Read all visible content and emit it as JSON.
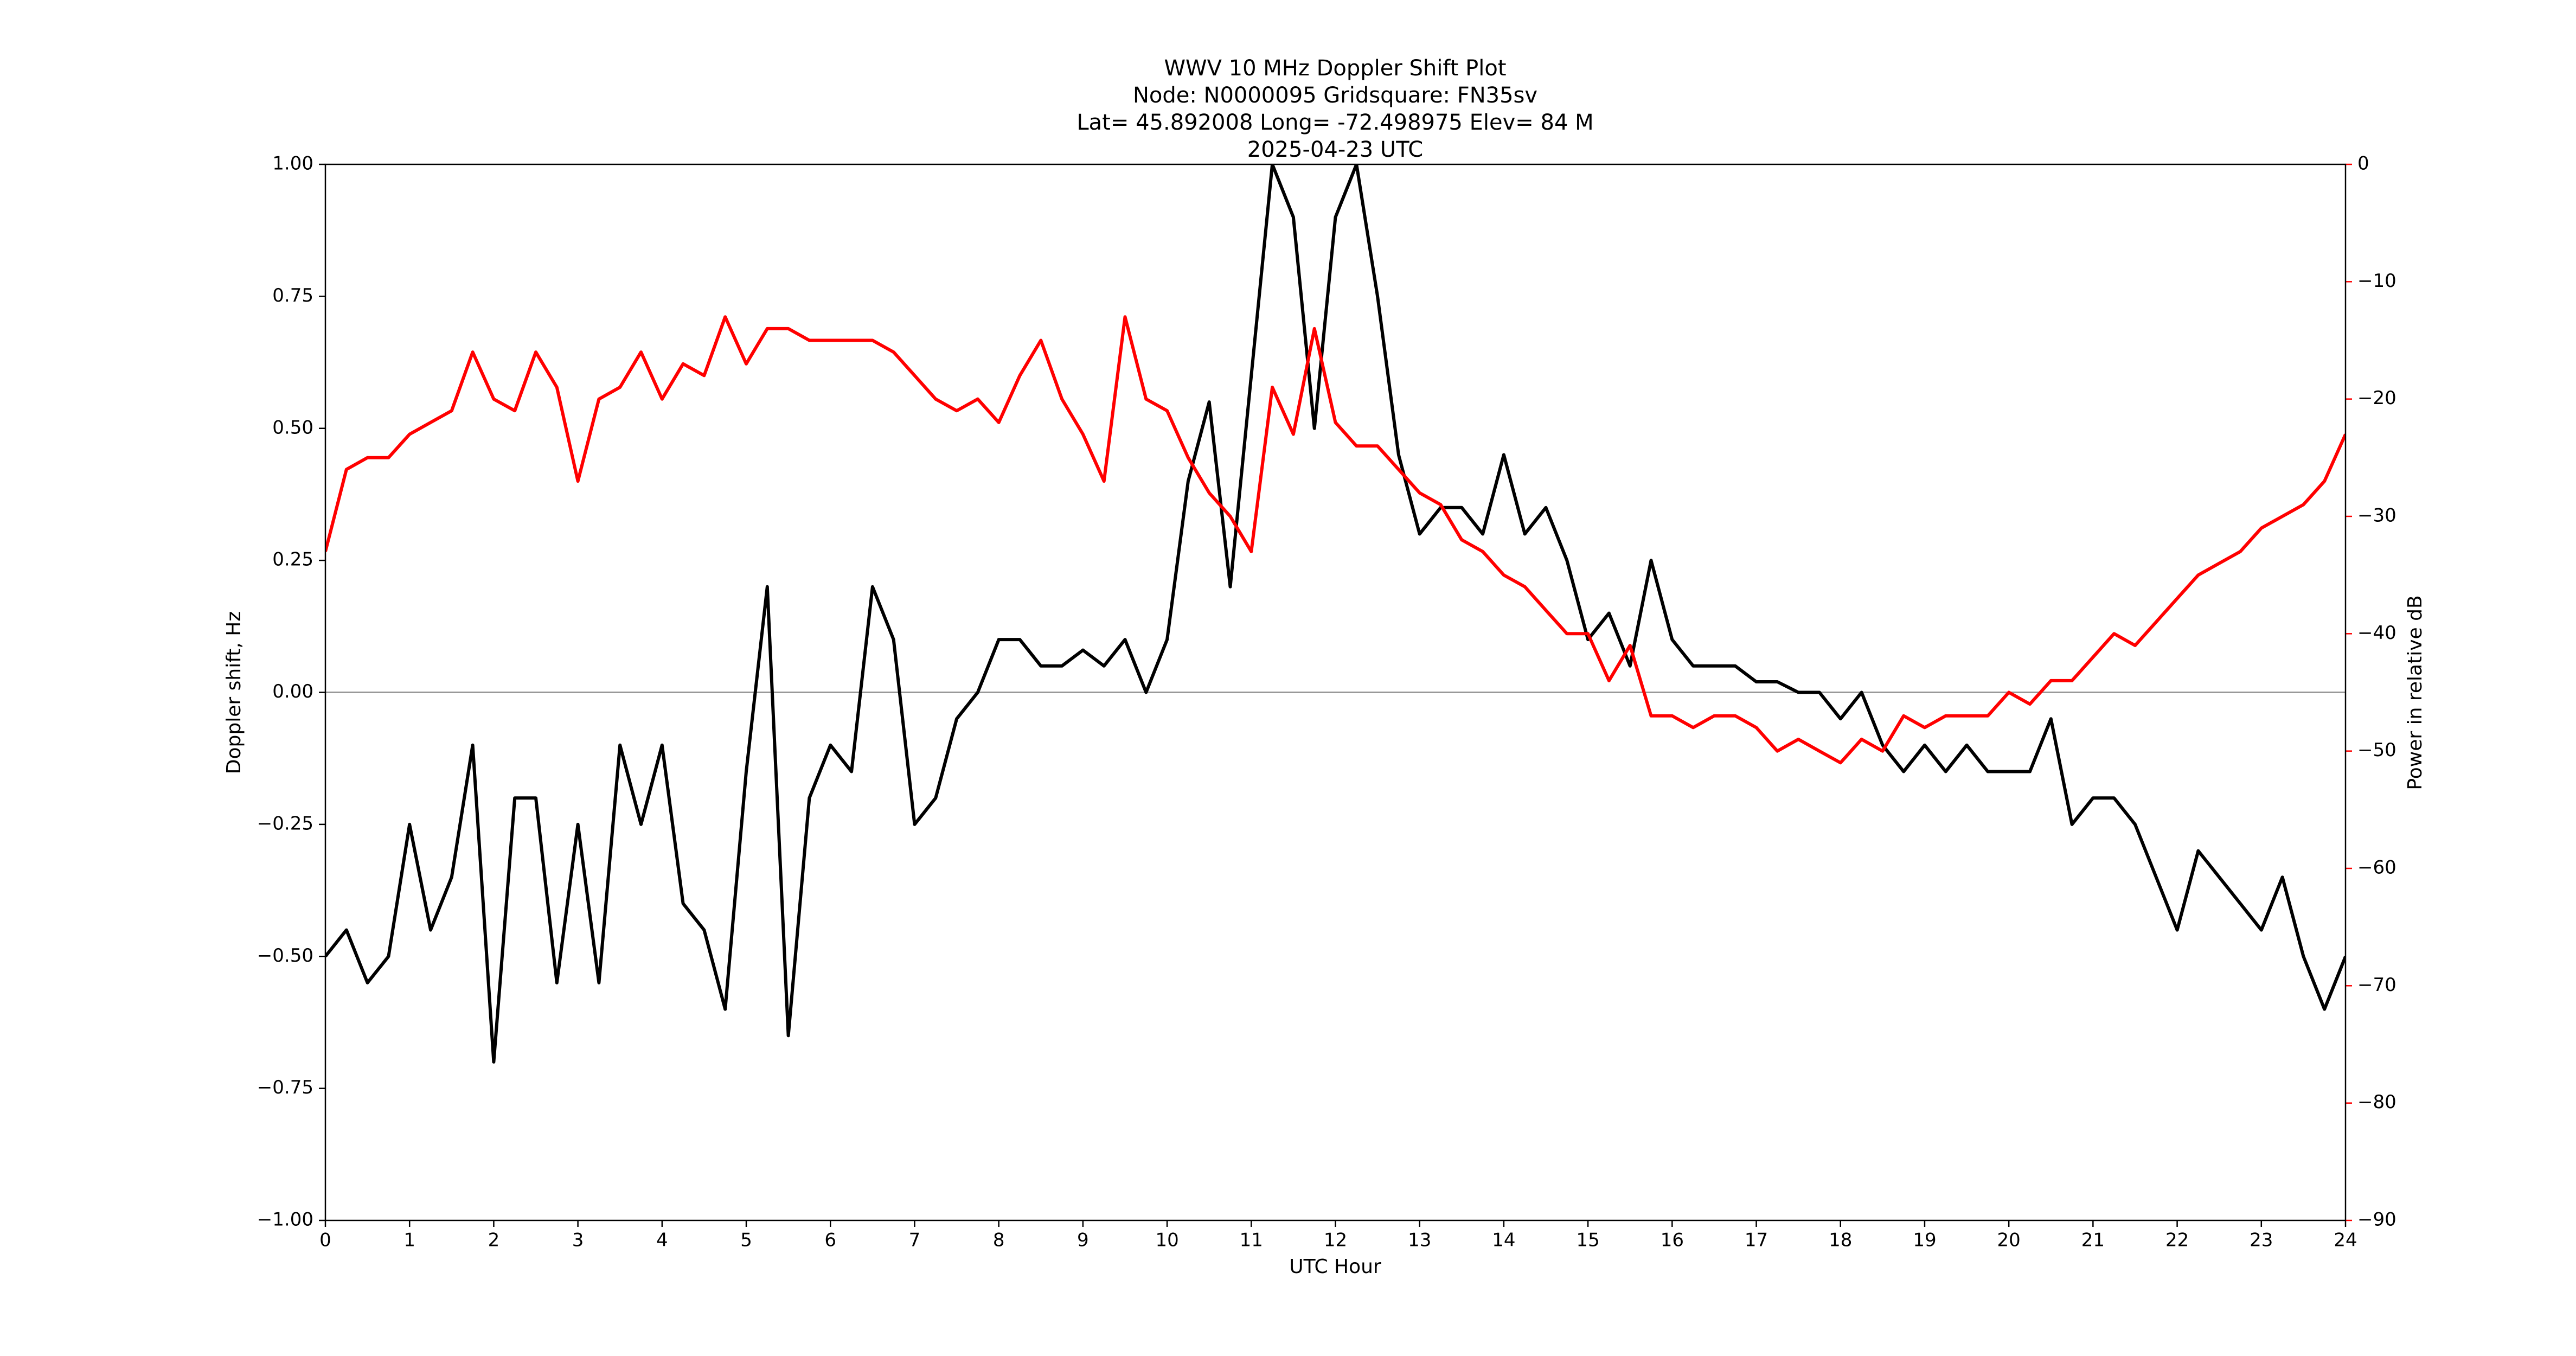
{
  "chart_data": {
    "type": "line",
    "title_lines": [
      "WWV 10 MHz Doppler Shift Plot",
      "Node:  N0000095     Gridsquare:  FN35sv",
      "Lat= 45.892008    Long= -72.498975    Elev= 84 M",
      "2025-04-23  UTC"
    ],
    "x_label": "UTC Hour",
    "y_label": "Doppler shift, Hz",
    "y2_label": "Power in relative dB",
    "x": [
      0,
      0.25,
      0.5,
      0.75,
      1,
      1.25,
      1.5,
      1.75,
      2,
      2.25,
      2.5,
      2.75,
      3,
      3.25,
      3.5,
      3.75,
      4,
      4.25,
      4.5,
      4.75,
      5,
      5.25,
      5.5,
      5.75,
      6,
      6.25,
      6.5,
      6.75,
      7,
      7.25,
      7.5,
      7.75,
      8,
      8.25,
      8.5,
      8.75,
      9,
      9.25,
      9.5,
      9.75,
      10,
      10.25,
      10.5,
      10.75,
      11,
      11.25,
      11.5,
      11.75,
      12,
      12.25,
      12.5,
      12.75,
      13,
      13.25,
      13.5,
      13.75,
      14,
      14.25,
      14.5,
      14.75,
      15,
      15.25,
      15.5,
      15.75,
      16,
      16.25,
      16.5,
      16.75,
      17,
      17.25,
      17.5,
      17.75,
      18,
      18.25,
      18.5,
      18.75,
      19,
      19.25,
      19.5,
      19.75,
      20,
      20.25,
      20.5,
      20.75,
      21,
      21.25,
      21.5,
      21.75,
      22,
      22.25,
      22.5,
      22.75,
      23,
      23.25,
      23.5,
      23.75,
      24
    ],
    "series": [
      {
        "color": "#000000",
        "values": [
          -0.5,
          -0.45,
          -0.55,
          -0.5,
          -0.25,
          -0.45,
          -0.35,
          -0.1,
          -0.7,
          -0.2,
          -0.2,
          -0.55,
          -0.25,
          -0.55,
          -0.1,
          -0.25,
          -0.1,
          -0.4,
          -0.45,
          -0.6,
          -0.15,
          0.2,
          -0.65,
          -0.2,
          -0.1,
          -0.15,
          0.2,
          0.1,
          -0.25,
          -0.2,
          -0.05,
          0.0,
          0.1,
          0.1,
          0.05,
          0.05,
          0.08,
          0.05,
          0.1,
          0.0,
          0.1,
          0.4,
          0.55,
          0.2,
          0.6,
          1.0,
          0.9,
          0.5,
          0.9,
          1.0,
          0.75,
          0.45,
          0.3,
          0.35,
          0.35,
          0.3,
          0.45,
          0.3,
          0.35,
          0.25,
          0.1,
          0.15,
          0.05,
          0.25,
          0.1,
          0.05,
          0.05,
          0.05,
          0.02,
          0.02,
          0.0,
          0.0,
          -0.05,
          0.0,
          -0.1,
          -0.15,
          -0.1,
          -0.15,
          -0.1,
          -0.15,
          -0.15,
          -0.15,
          -0.05,
          -0.25,
          -0.2,
          -0.2,
          -0.25,
          -0.35,
          -0.45,
          -0.3,
          -0.35,
          -0.4,
          -0.45,
          -0.35,
          -0.5,
          -0.6,
          -0.5
        ]
      },
      {
        "color": "#ff0000",
        "axis": "y2",
        "values": [
          -33,
          -26,
          -25,
          -25,
          -23,
          -22,
          -21,
          -16,
          -20,
          -21,
          -16,
          -19,
          -27,
          -20,
          -19,
          -16,
          -20,
          -17,
          -18,
          -13,
          -17,
          -14,
          -14,
          -15,
          -15,
          -15,
          -15,
          -16,
          -18,
          -20,
          -21,
          -20,
          -22,
          -18,
          -15,
          -20,
          -23,
          -27,
          -13,
          -20,
          -21,
          -25,
          -28,
          -30,
          -33,
          -19,
          -23,
          -14,
          -22,
          -24,
          -24,
          -26,
          -28,
          -29,
          -32,
          -33,
          -35,
          -36,
          -38,
          -40,
          -40,
          -44,
          -41,
          -47,
          -47,
          -48,
          -47,
          -47,
          -48,
          -50,
          -49,
          -50,
          -51,
          -49,
          -50,
          -47,
          -48,
          -47,
          -47,
          -47,
          -45,
          -46,
          -44,
          -44,
          -42,
          -40,
          -41,
          -39,
          -37,
          -35,
          -34,
          -33,
          -31,
          -30,
          -29,
          -27,
          -23
        ]
      }
    ],
    "xlim": [
      0,
      24
    ],
    "xticks": [
      0,
      1,
      2,
      3,
      4,
      5,
      6,
      7,
      8,
      9,
      10,
      11,
      12,
      13,
      14,
      15,
      16,
      17,
      18,
      19,
      20,
      21,
      22,
      23,
      24
    ],
    "ylim": [
      -1,
      1
    ],
    "yticks": [
      {
        "value": -1,
        "label": "−1.00"
      },
      {
        "value": -0.75,
        "label": "−0.75"
      },
      {
        "value": -0.5,
        "label": "−0.50"
      },
      {
        "value": -0.25,
        "label": "−0.25"
      },
      {
        "value": 0,
        "label": "0.00"
      },
      {
        "value": 0.25,
        "label": "0.25"
      },
      {
        "value": 0.5,
        "label": "0.50"
      },
      {
        "value": 0.75,
        "label": "0.75"
      },
      {
        "value": 1,
        "label": "1.00"
      }
    ],
    "y2lim": [
      -90,
      0
    ],
    "y2ticks": [
      {
        "value": -90,
        "label": "−90"
      },
      {
        "value": -80,
        "label": "−80"
      },
      {
        "value": -70,
        "label": "−70"
      },
      {
        "value": -60,
        "label": "−60"
      },
      {
        "value": -50,
        "label": "−50"
      },
      {
        "value": -40,
        "label": "−40"
      },
      {
        "value": -30,
        "label": "−30"
      },
      {
        "value": -20,
        "label": "−20"
      },
      {
        "value": -10,
        "label": "−10"
      },
      0
    ],
    "y2_color": "#ff0000",
    "hline": 0,
    "hline_color": "#999999"
  }
}
